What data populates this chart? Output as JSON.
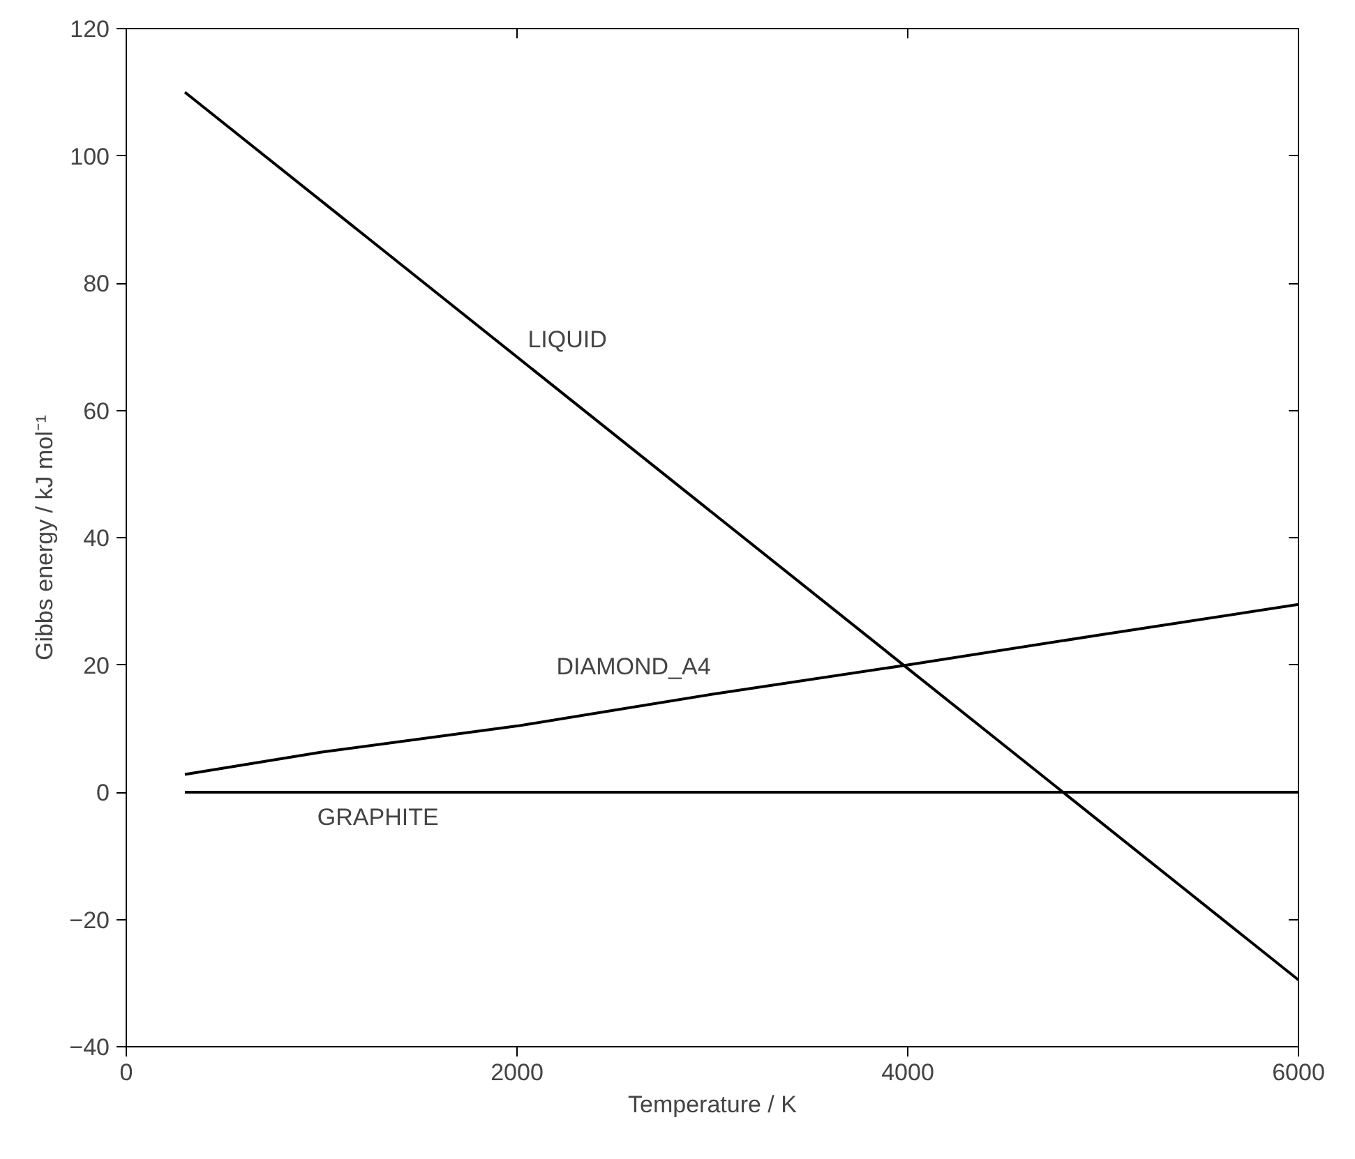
{
  "chart_data": {
    "type": "line",
    "xlabel": "Temperature / K",
    "ylabel": "Gibbs energy / kJ mol⁻¹",
    "xlim": [
      0,
      6000
    ],
    "ylim": [
      -40,
      120
    ],
    "xticks": [
      0,
      2000,
      4000,
      6000
    ],
    "yticks": [
      -40,
      -20,
      0,
      20,
      40,
      60,
      80,
      100,
      120
    ],
    "grid": false,
    "marker": "none",
    "line_style": "solid",
    "series": [
      {
        "name": "LIQUID",
        "color": "#000000",
        "x": [
          300,
          6000
        ],
        "values": [
          110,
          -29.5
        ]
      },
      {
        "name": "DIAMOND_A4",
        "color": "#000000",
        "x": [
          300,
          1000,
          2000,
          3000,
          4000,
          5000,
          6000
        ],
        "values": [
          2.8,
          6.3,
          10.4,
          15.4,
          20,
          24.8,
          29.5
        ]
      },
      {
        "name": "GRAPHITE",
        "color": "#000000",
        "x": [
          300,
          6000
        ],
        "values": [
          0,
          0
        ]
      }
    ]
  }
}
